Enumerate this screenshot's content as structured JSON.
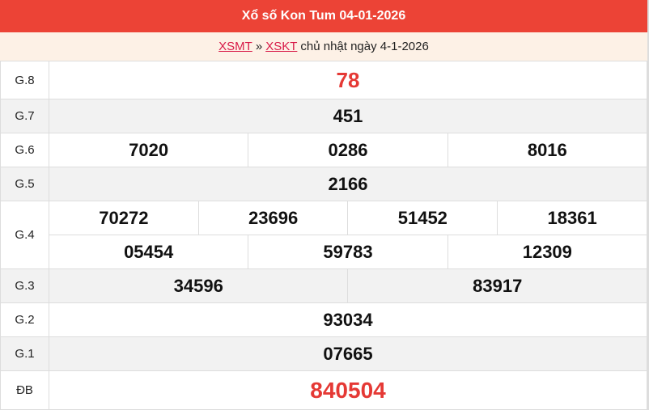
{
  "header": {
    "title": "Xổ số Kon Tum 04-01-2026"
  },
  "breadcrumb": {
    "link1": "XSMT",
    "sep": "»",
    "link2": "XSKT",
    "text": "chủ nhật ngày 4-1-2026"
  },
  "colors": {
    "header_bg": "#ec4336",
    "sub_bg": "#fdf1e6",
    "link": "#d81b48",
    "highlight": "#e53935"
  },
  "prizes": {
    "g8": {
      "label": "G.8",
      "values": [
        "78"
      ]
    },
    "g7": {
      "label": "G.7",
      "values": [
        "451"
      ]
    },
    "g6": {
      "label": "G.6",
      "values": [
        "7020",
        "0286",
        "8016"
      ]
    },
    "g5": {
      "label": "G.5",
      "values": [
        "2166"
      ]
    },
    "g4": {
      "label": "G.4",
      "values": [
        "70272",
        "23696",
        "51452",
        "18361",
        "05454",
        "59783",
        "12309"
      ]
    },
    "g3": {
      "label": "G.3",
      "values": [
        "34596",
        "83917"
      ]
    },
    "g2": {
      "label": "G.2",
      "values": [
        "93034"
      ]
    },
    "g1": {
      "label": "G.1",
      "values": [
        "07665"
      ]
    },
    "db": {
      "label": "ĐB",
      "values": [
        "840504"
      ]
    }
  }
}
